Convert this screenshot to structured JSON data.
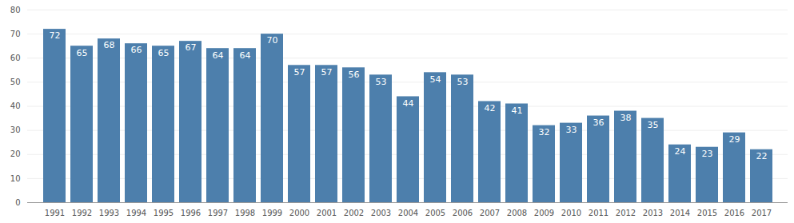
{
  "chart_data": {
    "type": "bar",
    "categories": [
      "1991",
      "1992",
      "1993",
      "1994",
      "1995",
      "1996",
      "1997",
      "1998",
      "1999",
      "2000",
      "2001",
      "2002",
      "2003",
      "2004",
      "2005",
      "2006",
      "2007",
      "2008",
      "2009",
      "2010",
      "2011",
      "2012",
      "2013",
      "2014",
      "2015",
      "2016",
      "2017"
    ],
    "values": [
      72,
      65,
      68,
      66,
      65,
      67,
      64,
      64,
      70,
      57,
      57,
      56,
      53,
      44,
      54,
      53,
      42,
      41,
      32,
      33,
      36,
      38,
      35,
      24,
      23,
      29,
      22
    ],
    "color": "#4d7fac",
    "ylim": [
      0,
      80
    ],
    "yticks": [
      0,
      10,
      20,
      30,
      40,
      50,
      60,
      70,
      80
    ],
    "grid": true,
    "data_labels": true
  }
}
